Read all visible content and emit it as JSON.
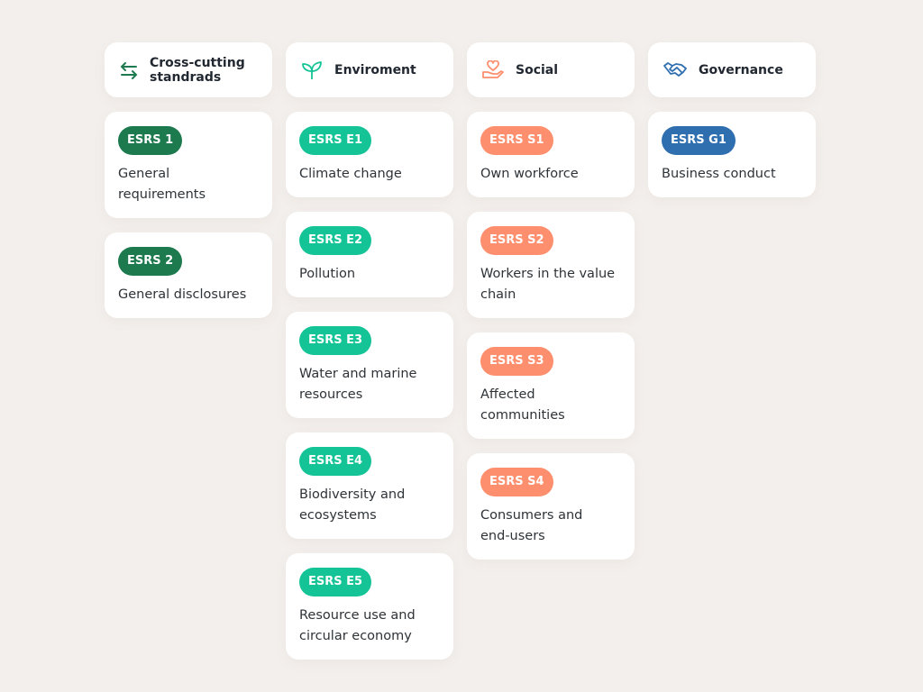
{
  "colors": {
    "background": "#f3efec",
    "cross": "#1d7a4f",
    "env": "#14c396",
    "social": "#fd8f6e",
    "gov": "#2f6fb0"
  },
  "columns": [
    {
      "title": "Cross-cutting standrads",
      "icon": "arrows-exchange-icon",
      "color": "#1d7a4f",
      "items": [
        {
          "code": "ESRS 1",
          "label": "General requirements"
        },
        {
          "code": "ESRS 2",
          "label": "General disclosures"
        }
      ]
    },
    {
      "title": "Enviroment",
      "icon": "leaf-sprout-icon",
      "color": "#14c396",
      "items": [
        {
          "code": "ESRS E1",
          "label": "Climate change"
        },
        {
          "code": "ESRS E2",
          "label": "Pollution"
        },
        {
          "code": "ESRS E3",
          "label": "Water and marine resources"
        },
        {
          "code": "ESRS E4",
          "label": "Biodiversity and ecosystems"
        },
        {
          "code": "ESRS E5",
          "label": "Resource use and circular economy"
        }
      ]
    },
    {
      "title": "Social",
      "icon": "heart-hand-icon",
      "color": "#fd8f6e",
      "items": [
        {
          "code": "ESRS S1",
          "label": "Own workforce"
        },
        {
          "code": "ESRS S2",
          "label": "Workers in the value chain"
        },
        {
          "code": "ESRS S3",
          "label": "Affected communities"
        },
        {
          "code": "ESRS S4",
          "label": "Consumers and end-users"
        }
      ]
    },
    {
      "title": "Governance",
      "icon": "handshake-icon",
      "color": "#2f6fb0",
      "items": [
        {
          "code": "ESRS G1",
          "label": "Business conduct"
        }
      ]
    }
  ]
}
